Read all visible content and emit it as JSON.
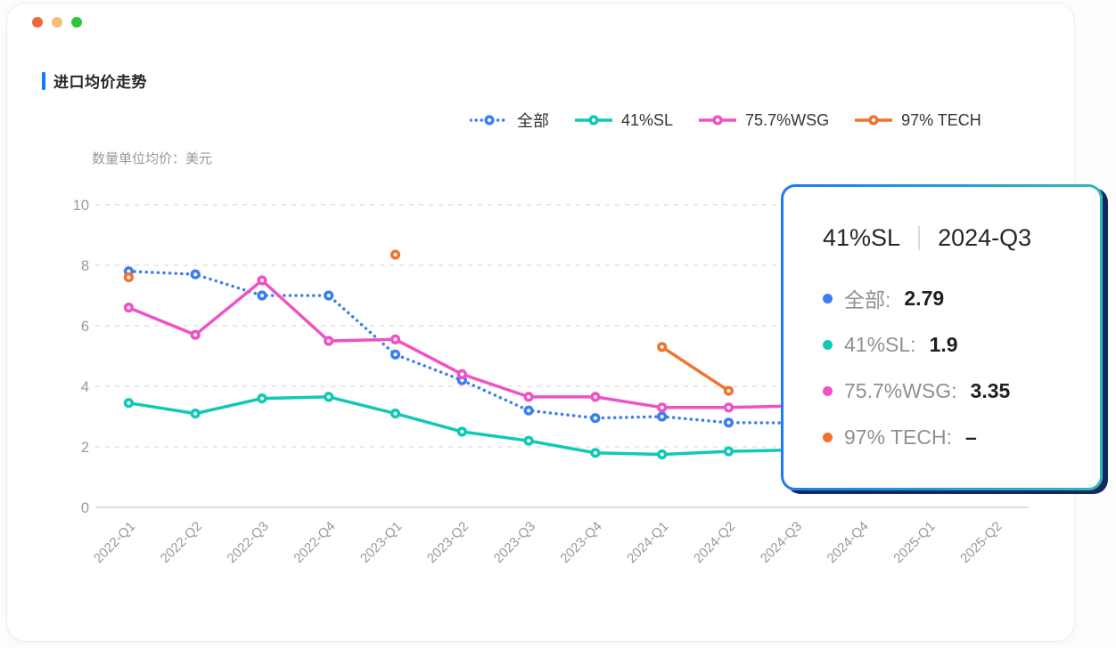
{
  "window": {
    "traffic_lights": [
      {
        "name": "window-dot-red",
        "color": "#f2673f"
      },
      {
        "name": "window-dot-orange",
        "color": "#f6bd75"
      },
      {
        "name": "window-dot-green",
        "color": "#2ec639"
      }
    ]
  },
  "header": {
    "title": "进口均价走势",
    "accent_color": "#1677ff"
  },
  "chart_data": {
    "type": "line",
    "title": "进口均价走势",
    "unit_label": "数量单位均价：美元",
    "categories": [
      "2022-Q1",
      "2022-Q2",
      "2022-Q3",
      "2022-Q4",
      "2023-Q1",
      "2023-Q2",
      "2023-Q3",
      "2023-Q4",
      "2024-Q1",
      "2024-Q2",
      "2024-Q3",
      "2024-Q4",
      "2025-Q1",
      "2025-Q2"
    ],
    "series": [
      {
        "name": "全部",
        "color": "#3c7ef0",
        "line_style": "dotted",
        "values": [
          7.8,
          7.7,
          7.0,
          7.0,
          5.05,
          4.2,
          3.2,
          2.95,
          3.0,
          2.8,
          2.79,
          null,
          null,
          null
        ]
      },
      {
        "name": "41%SL",
        "color": "#10c9b4",
        "line_style": "solid",
        "values": [
          3.45,
          3.1,
          3.6,
          3.65,
          3.1,
          2.5,
          2.2,
          1.8,
          1.75,
          1.85,
          1.9,
          null,
          null,
          null
        ]
      },
      {
        "name": "75.7%WSG",
        "color": "#ee52c5",
        "line_style": "solid",
        "values": [
          6.6,
          5.7,
          7.5,
          5.5,
          5.55,
          4.4,
          3.65,
          3.65,
          3.3,
          3.3,
          3.35,
          null,
          null,
          null
        ]
      },
      {
        "name": "97% TECH",
        "color": "#f0742f",
        "line_style": "solid",
        "values": [
          7.6,
          null,
          null,
          null,
          8.35,
          null,
          null,
          null,
          5.3,
          3.85,
          null,
          null,
          null,
          null
        ]
      }
    ],
    "ylim": [
      0,
      10
    ],
    "yticks": [
      0,
      2,
      4,
      6,
      8,
      10
    ],
    "grid": "dashed",
    "legend_position": "top",
    "axis_color": "#999999"
  },
  "tooltip": {
    "series": "41%SL",
    "period": "2024-Q3",
    "rows": [
      {
        "label": "全部:",
        "value": "2.79",
        "color": "#3c7ef0"
      },
      {
        "label": "41%SL:",
        "value": "1.9",
        "color": "#10c9b4"
      },
      {
        "label": "75.7%WSG:",
        "value": "3.35",
        "color": "#ee52c5"
      },
      {
        "label": "97% TECH:",
        "value": "–",
        "color": "#f0742f"
      }
    ],
    "border_gradient": [
      "#1d7bf8",
      "#2ebaba"
    ],
    "shadow_color": "#16295f"
  }
}
